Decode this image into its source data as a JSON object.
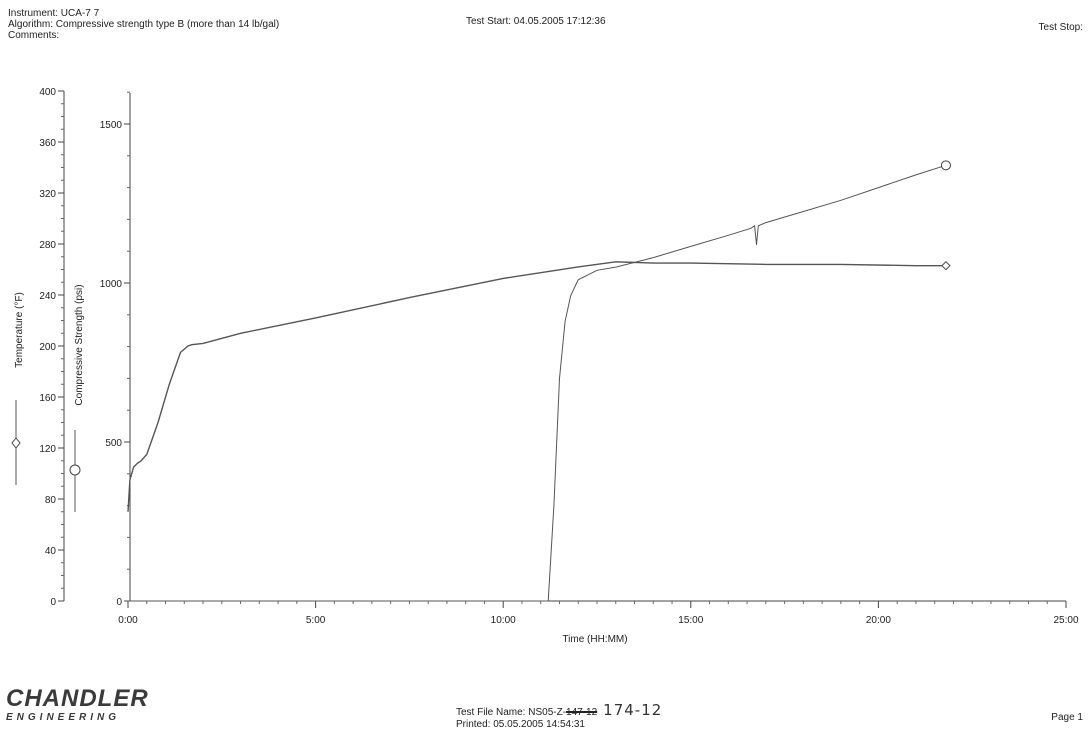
{
  "header": {
    "instrument": "Instrument: UCA-7 7",
    "algorithm": "Algorithm: Compressive strength type B (more than 14 lb/gal)",
    "comments": "Comments:",
    "test_start": "Test Start: 04.05.2005 17:12:36",
    "test_stop": "Test Stop:"
  },
  "footer": {
    "brand_name": "CHANDLER",
    "brand_sub": "ENGINEERING",
    "file_label": "Test File Name: NS05-Z-",
    "file_struck": "147-12",
    "file_handwritten": "174-12",
    "printed": "Printed: 05.05.2005 14:54:31",
    "page": "Page 1"
  },
  "chart_data": {
    "type": "line",
    "xlabel": "Time (HH:MM)",
    "x_ticks": [
      "0:00",
      "5:00",
      "10:00",
      "15:00",
      "20:00",
      "25:00"
    ],
    "xlim_hours": [
      0,
      25
    ],
    "y_axes": [
      {
        "label": "Temperature (°F)",
        "ylim": [
          0,
          400
        ],
        "ticks": [
          "0",
          "40",
          "80",
          "120",
          "160",
          "200",
          "240",
          "280",
          "320",
          "360",
          "400"
        ],
        "marker": "diamond"
      },
      {
        "label": "Compressive Strength (psi)",
        "ylim": [
          0,
          1600
        ],
        "ticks": [
          "0",
          "500",
          "1000",
          "1500"
        ],
        "marker": "circle"
      }
    ],
    "grid": false,
    "series": [
      {
        "axis": "Temperature (°F)",
        "x_hours": [
          0.0,
          0.05,
          0.15,
          0.25,
          0.35,
          0.5,
          0.8,
          1.1,
          1.4,
          1.6,
          1.7,
          2.0,
          3.0,
          5.0,
          7.5,
          10.0,
          12.0,
          13.0,
          14.0,
          15.0,
          17.0,
          19.0,
          21.0,
          21.8
        ],
        "values": [
          70,
          95,
          105,
          108,
          110,
          115,
          140,
          170,
          195,
          200,
          201,
          202,
          210,
          222,
          238,
          253,
          262,
          266,
          265,
          265,
          264,
          264,
          263,
          263
        ]
      },
      {
        "axis": "Compressive Strength (psi)",
        "x_hours": [
          0.0,
          11.2,
          11.35,
          11.5,
          11.65,
          11.8,
          12.0,
          12.5,
          13.0,
          14.0,
          15.0,
          16.0,
          16.6,
          16.7,
          16.75,
          16.8,
          17.0,
          18.0,
          19.0,
          20.0,
          21.0,
          21.8
        ],
        "values": [
          0,
          0,
          300,
          700,
          880,
          960,
          1010,
          1040,
          1050,
          1080,
          1115,
          1150,
          1172,
          1180,
          1120,
          1180,
          1190,
          1225,
          1260,
          1300,
          1340,
          1370
        ]
      }
    ]
  }
}
